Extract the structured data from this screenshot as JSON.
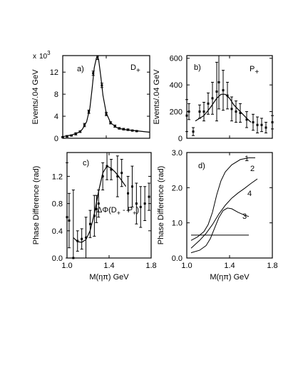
{
  "figure": {
    "xlabel": "M(ηπ) GeV",
    "panels": {
      "a": {
        "panel_label": "a)",
        "state_label": "D",
        "state_sub": "+",
        "ylabel": "Events/.04 GeV",
        "multiplier_x": "x",
        "multiplier_base": "10",
        "multiplier_exp": "3"
      },
      "b": {
        "panel_label": "b)",
        "state_label": "P",
        "state_sub": "+",
        "ylabel": "Events/.04 GeV"
      },
      "c": {
        "panel_label": "c)",
        "ylabel": "Phase  Difference  (rad)",
        "annotation_main": "ΔΦ(D",
        "annotation_sub1": "+",
        "annotation_mid": " - P",
        "annotation_sub2": "+",
        "annotation_end": ")"
      },
      "d": {
        "panel_label": "d)",
        "ylabel": "Phase  Difference  (rad)",
        "curve_labels": [
          "1",
          "2",
          "4",
          "3"
        ]
      }
    }
  },
  "chart_data": [
    {
      "id": "a",
      "type": "scatter",
      "xlim": [
        1.0,
        1.8
      ],
      "ylim": [
        0,
        15
      ],
      "yticks": [
        0,
        4,
        8,
        12
      ],
      "ytick_labels": [
        "0",
        "4",
        "8",
        "12"
      ],
      "xticks": [
        1.0,
        1.4,
        1.8
      ],
      "xtick_labels": [],
      "points": [
        {
          "x": 1.0,
          "y": 0.2,
          "err": 0.1
        },
        {
          "x": 1.04,
          "y": 0.35,
          "err": 0.15
        },
        {
          "x": 1.08,
          "y": 0.5,
          "err": 0.1
        },
        {
          "x": 1.12,
          "y": 0.8,
          "err": 0.2
        },
        {
          "x": 1.16,
          "y": 1.2,
          "err": 0.15
        },
        {
          "x": 1.2,
          "y": 2.4,
          "err": 0.3
        },
        {
          "x": 1.24,
          "y": 4.8,
          "err": 0.3
        },
        {
          "x": 1.28,
          "y": 11.8,
          "err": 0.4
        },
        {
          "x": 1.32,
          "y": 14.8,
          "err": 0.5
        },
        {
          "x": 1.36,
          "y": 9.6,
          "err": 0.4
        },
        {
          "x": 1.4,
          "y": 4.4,
          "err": 0.3
        },
        {
          "x": 1.44,
          "y": 2.8,
          "err": 0.2
        },
        {
          "x": 1.48,
          "y": 2.2,
          "err": 0.2
        },
        {
          "x": 1.52,
          "y": 1.8,
          "err": 0.15
        },
        {
          "x": 1.56,
          "y": 1.65,
          "err": 0.15
        },
        {
          "x": 1.6,
          "y": 1.55,
          "err": 0.15
        },
        {
          "x": 1.64,
          "y": 1.4,
          "err": 0.1
        },
        {
          "x": 1.68,
          "y": 1.3,
          "err": 0.1
        }
      ],
      "fit_curve": {
        "x": [
          1.0,
          1.08,
          1.14,
          1.18,
          1.22,
          1.25,
          1.27,
          1.29,
          1.31,
          1.32,
          1.33,
          1.35,
          1.37,
          1.4,
          1.44,
          1.5,
          1.56,
          1.8
        ],
        "y": [
          0.3,
          0.6,
          1.0,
          1.6,
          3.0,
          5.5,
          9.0,
          12.8,
          14.6,
          14.8,
          14.3,
          11.2,
          7.8,
          4.6,
          2.8,
          1.9,
          1.6,
          1.1
        ]
      }
    },
    {
      "id": "b",
      "type": "scatter",
      "xlim": [
        1.0,
        1.8
      ],
      "ylim": [
        0,
        620
      ],
      "yticks": [
        0,
        200,
        400,
        600
      ],
      "ytick_labels": [
        "0",
        "200",
        "400",
        "600"
      ],
      "xticks": [
        1.0,
        1.4,
        1.8
      ],
      "xtick_labels": [],
      "points": [
        {
          "x": 1.0,
          "y": 170,
          "err": 120
        },
        {
          "x": 1.02,
          "y": 200,
          "err": 60
        },
        {
          "x": 1.06,
          "y": 50,
          "err": 30
        },
        {
          "x": 1.12,
          "y": 200,
          "err": 50
        },
        {
          "x": 1.16,
          "y": 200,
          "err": 70
        },
        {
          "x": 1.2,
          "y": 260,
          "err": 80
        },
        {
          "x": 1.24,
          "y": 300,
          "err": 120
        },
        {
          "x": 1.28,
          "y": 350,
          "err": 220
        },
        {
          "x": 1.3,
          "y": 420,
          "err": 200
        },
        {
          "x": 1.34,
          "y": 360,
          "err": 150
        },
        {
          "x": 1.38,
          "y": 320,
          "err": 100
        },
        {
          "x": 1.42,
          "y": 220,
          "err": 90
        },
        {
          "x": 1.46,
          "y": 200,
          "err": 80
        },
        {
          "x": 1.5,
          "y": 190,
          "err": 70
        },
        {
          "x": 1.56,
          "y": 140,
          "err": 60
        },
        {
          "x": 1.62,
          "y": 120,
          "err": 60
        },
        {
          "x": 1.66,
          "y": 100,
          "err": 60
        },
        {
          "x": 1.7,
          "y": 100,
          "err": 50
        },
        {
          "x": 1.74,
          "y": 80,
          "err": 40
        },
        {
          "x": 1.8,
          "y": 120,
          "err": 50
        }
      ],
      "fit_curve": {
        "x": [
          1.08,
          1.16,
          1.22,
          1.28,
          1.32,
          1.36,
          1.4,
          1.44,
          1.5,
          1.56,
          1.6
        ],
        "y": [
          130,
          170,
          230,
          300,
          330,
          330,
          300,
          250,
          200,
          150,
          120
        ]
      }
    },
    {
      "id": "c",
      "type": "scatter",
      "xlim": [
        1.0,
        1.8
      ],
      "ylim": [
        0,
        1.55
      ],
      "yticks": [
        0,
        0.4,
        0.8,
        1.2
      ],
      "ytick_labels": [
        "0.0",
        "0.4",
        "0.8",
        "1.2"
      ],
      "xticks": [
        1.0,
        1.4,
        1.8
      ],
      "xtick_labels": [
        "1.0",
        "1.4",
        "1.8"
      ],
      "points": [
        {
          "x": 1.0,
          "y": 0.6,
          "err": 0.8
        },
        {
          "x": 1.02,
          "y": 0.55,
          "err": 0.4
        },
        {
          "x": 1.06,
          "y": 0.0,
          "err": 1.0
        },
        {
          "x": 1.1,
          "y": 0.25,
          "err": 0.15
        },
        {
          "x": 1.14,
          "y": 0.28,
          "err": 0.15
        },
        {
          "x": 1.18,
          "y": 0.3,
          "err": 0.3
        },
        {
          "x": 1.22,
          "y": 0.5,
          "err": 0.2
        },
        {
          "x": 1.26,
          "y": 0.62,
          "err": 0.3
        },
        {
          "x": 1.28,
          "y": 0.72,
          "err": 0.2
        },
        {
          "x": 1.3,
          "y": 0.8,
          "err": 0.2
        },
        {
          "x": 1.34,
          "y": 1.2,
          "err": 0.2
        },
        {
          "x": 1.38,
          "y": 1.35,
          "err": 0.2
        },
        {
          "x": 1.42,
          "y": 1.3,
          "err": 0.15
        },
        {
          "x": 1.48,
          "y": 1.2,
          "err": 0.3
        },
        {
          "x": 1.52,
          "y": 1.25,
          "err": 0.2
        },
        {
          "x": 1.58,
          "y": 0.95,
          "err": 0.25
        },
        {
          "x": 1.62,
          "y": 1.05,
          "err": 0.3
        },
        {
          "x": 1.66,
          "y": 0.8,
          "err": 0.3
        },
        {
          "x": 1.7,
          "y": 0.75,
          "err": 0.3
        },
        {
          "x": 1.74,
          "y": 0.8,
          "err": 0.25
        },
        {
          "x": 1.78,
          "y": 0.9,
          "err": 0.2
        }
      ],
      "fit_curve": {
        "x": [
          1.06,
          1.1,
          1.14,
          1.18,
          1.22,
          1.26,
          1.3,
          1.34,
          1.38,
          1.42,
          1.46,
          1.5,
          1.56
        ],
        "y": [
          0.3,
          0.24,
          0.23,
          0.27,
          0.4,
          0.65,
          0.98,
          1.25,
          1.35,
          1.32,
          1.26,
          1.18,
          1.05
        ]
      }
    },
    {
      "id": "d",
      "type": "line",
      "xlim": [
        1.0,
        1.8
      ],
      "ylim": [
        0,
        3.0
      ],
      "yticks": [
        0,
        1,
        2,
        3
      ],
      "ytick_labels": [
        "0.0",
        "1.0",
        "2.0",
        "3.0"
      ],
      "xticks": [
        1.0,
        1.4,
        1.8
      ],
      "xtick_labels": [
        "1.0",
        "1.4",
        "1.8"
      ],
      "series": [
        {
          "name": "1",
          "x": [
            1.04,
            1.1,
            1.16,
            1.2,
            1.24,
            1.28,
            1.32,
            1.36,
            1.42,
            1.5,
            1.58,
            1.64
          ],
          "y": [
            0.5,
            0.6,
            0.75,
            0.95,
            1.3,
            1.8,
            2.2,
            2.45,
            2.65,
            2.8,
            2.85,
            2.85
          ]
        },
        {
          "name": "2",
          "x": [
            1.04,
            1.12,
            1.18,
            1.24,
            1.3,
            1.36,
            1.42,
            1.48,
            1.54,
            1.6,
            1.66
          ],
          "y": [
            0.28,
            0.5,
            0.7,
            0.95,
            1.25,
            1.5,
            1.7,
            1.85,
            1.98,
            2.12,
            2.25
          ]
        },
        {
          "name": "4",
          "x": [
            1.04,
            1.12,
            1.18,
            1.22,
            1.26,
            1.3,
            1.34,
            1.38,
            1.42,
            1.48,
            1.54,
            1.58
          ],
          "y": [
            0.15,
            0.22,
            0.35,
            0.55,
            0.85,
            1.15,
            1.35,
            1.42,
            1.4,
            1.3,
            1.22,
            1.18
          ]
        },
        {
          "name": "3",
          "x": [
            1.04,
            1.58
          ],
          "y": [
            0.65,
            0.65
          ]
        }
      ]
    }
  ]
}
